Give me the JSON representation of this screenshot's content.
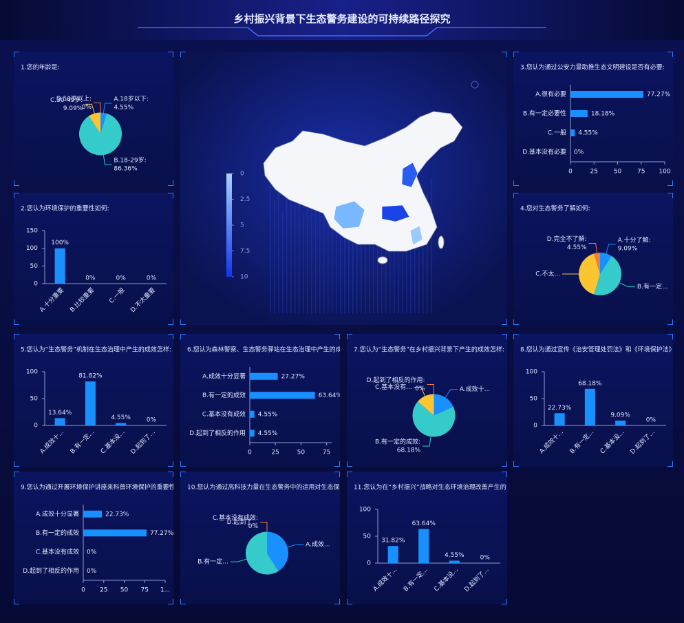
{
  "title": "乡村振兴背景下生态警务建设的可持续路径探究",
  "chart_data": [
    {
      "type": "pie",
      "title": "1.您的年龄是:",
      "categories": [
        "A.18岁以下:",
        "B.18-29岁:",
        "C.30-49岁:",
        "D.50岁以上:"
      ],
      "values": [
        4.55,
        86.36,
        9.09,
        0
      ],
      "value_labels": [
        "4.55%",
        "86.36%",
        "9.09%",
        "0%"
      ],
      "colors": [
        "#1890ff",
        "#36cbcb",
        "#fbc531",
        "#f57c3c"
      ]
    },
    {
      "type": "bar",
      "title": "2.您认为环境保护的重要性如何:",
      "categories": [
        "A.十分重要",
        "B.比较重要",
        "C.一般",
        "D.不太重要"
      ],
      "values": [
        100,
        0,
        0,
        0
      ],
      "value_labels": [
        "100%",
        "0%",
        "0%",
        "0%"
      ],
      "color": "#1890ff",
      "ylim": [
        0,
        150
      ],
      "yticks": [
        0,
        50,
        100,
        150
      ]
    },
    {
      "type": "hbar",
      "title": "3.您认为通过公安力量助推生态文明建设是否有必要:",
      "categories": [
        "A.很有必要",
        "B.有一定必要性",
        "C.一般",
        "D.基本没有必要"
      ],
      "values": [
        77.27,
        18.18,
        4.55,
        0
      ],
      "value_labels": [
        "77.27%",
        "18.18%",
        "4.55%",
        "0%"
      ],
      "color": "#1890ff",
      "xlim": [
        0,
        100
      ],
      "xticks": [
        0,
        25,
        50,
        75,
        100
      ]
    },
    {
      "type": "pie",
      "title": "4.您对生态警务了解如何:",
      "categories": [
        "A.十分了解:",
        "B.有一定...",
        "C.不太...",
        "D.完全不了解:"
      ],
      "values": [
        9.09,
        45.45,
        40.91,
        4.55
      ],
      "value_labels": [
        "9.09%",
        null,
        null,
        "4.55%"
      ],
      "colors": [
        "#1890ff",
        "#36cbcb",
        "#fbc531",
        "#f57c3c"
      ]
    },
    {
      "type": "bar",
      "title": "5.您认为“生态警务”机制在生态治理中产生的成效怎样:",
      "categories": [
        "A.成效十...",
        "B.有一定...",
        "C.基本没...",
        "D.起到了..."
      ],
      "values": [
        13.64,
        81.82,
        4.55,
        0
      ],
      "value_labels": [
        "13.64%",
        "81.82%",
        "4.55%",
        "0%"
      ],
      "color": "#1890ff",
      "ylim": [
        0,
        100
      ],
      "yticks": [
        0,
        50,
        100
      ]
    },
    {
      "type": "hbar",
      "title": "6.您认为森林警察、生态警务驿站在生态治理中产生的成",
      "categories": [
        "A.成效十分显著",
        "B.有一定的成效",
        "C.基本没有成效",
        "D.起到了相反的作用"
      ],
      "values": [
        27.27,
        63.64,
        4.55,
        4.55
      ],
      "value_labels": [
        "27.27%",
        "63.64%",
        "4.55%",
        "4.55%"
      ],
      "color": "#1890ff",
      "xlim": [
        0,
        80
      ],
      "xticks": [
        0,
        25,
        50,
        75
      ]
    },
    {
      "type": "pie",
      "title": "7.您认为“生态警务”在乡村振兴背景下产生的成效怎样:",
      "categories": [
        "A.成效十...",
        "B.有一定的成效:",
        "C.基本没有...",
        "D.起到了相反的作用:"
      ],
      "values": [
        18.18,
        68.18,
        13.64,
        0
      ],
      "value_labels": [
        null,
        "68.18%",
        null,
        "0%"
      ],
      "colors": [
        "#1890ff",
        "#36cbcb",
        "#fbc531",
        "#f57c3c"
      ]
    },
    {
      "type": "bar",
      "title": "8.您认为通过宣传《治安管理处罚法》和《环境保护法》",
      "categories": [
        "A.成效十...",
        "B.有一定...",
        "C.基本没...",
        "D.起到了..."
      ],
      "values": [
        22.73,
        68.18,
        9.09,
        0
      ],
      "value_labels": [
        "22.73%",
        "68.18%",
        "9.09%",
        "0%"
      ],
      "color": "#1890ff",
      "ylim": [
        0,
        100
      ],
      "yticks": [
        0,
        50,
        100
      ]
    },
    {
      "type": "hbar",
      "title": "9.您认为通过开展环境保护讲座来科普环境保护的重要性",
      "categories": [
        "A.成效十分显著",
        "B.有一定的成效",
        "C.基本没有成效",
        "D.起到了相反的作用"
      ],
      "values": [
        22.73,
        77.27,
        0,
        0
      ],
      "value_labels": [
        "22.73%",
        "77.27%",
        "0%",
        "0%"
      ],
      "color": "#1890ff",
      "xlim": [
        0,
        100
      ],
      "xticks": [
        0,
        25,
        50,
        75,
        {
          "value": 100,
          "label": "1..."
        }
      ]
    },
    {
      "type": "pie",
      "title": "10.您认为通过高科技力量在生态警务中的运用对生态保",
      "categories": [
        "A.成效...",
        "B.有一定...",
        "C.基本没有成效:",
        "D.起到了..."
      ],
      "values": [
        40.91,
        59.09,
        0,
        0
      ],
      "value_labels": [
        null,
        null,
        "0%",
        null
      ],
      "colors": [
        "#1890ff",
        "#36cbcb",
        "#fbc531",
        "#f57c3c"
      ]
    },
    {
      "type": "bar",
      "title": "11.您认为在“乡村振兴”战略对生态环境治理改善产生的",
      "categories": [
        "A.成效十...",
        "B.有一定...",
        "C.基本没...",
        "D.起到了..."
      ],
      "values": [
        31.82,
        63.64,
        4.55,
        0
      ],
      "value_labels": [
        "31.82%",
        "63.64%",
        "4.55%",
        "0%"
      ],
      "color": "#1890ff",
      "ylim": [
        0,
        100
      ],
      "yticks": [
        0,
        50,
        100
      ]
    },
    {
      "type": "map",
      "scale_range": [
        0,
        10
      ],
      "scale_ticks": [
        0,
        2.5,
        5,
        7.5,
        10
      ],
      "scale_colors": [
        "#a9d2ff",
        "#1236f0"
      ]
    }
  ]
}
